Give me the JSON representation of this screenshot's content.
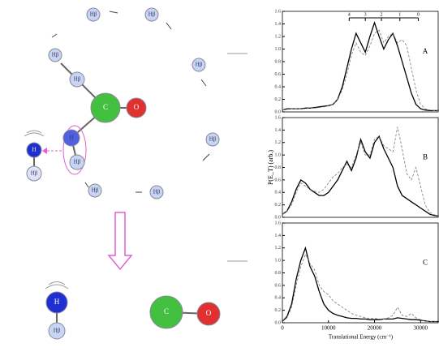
{
  "diagram": {
    "nodes": [
      {
        "label": "Hβ"
      },
      {
        "label": "Hβ"
      },
      {
        "label": "Hβ"
      },
      {
        "label": "Hβ"
      },
      {
        "label": "Hβ"
      },
      {
        "label": "Hβ"
      },
      {
        "label": "Hβ"
      },
      {
        "label": "Hβ"
      },
      {
        "label": "C"
      },
      {
        "label": "O"
      },
      {
        "label": "H"
      },
      {
        "label": "Hβ"
      },
      {
        "label": "H"
      },
      {
        "label": "Hβ"
      },
      {
        "label": "H"
      },
      {
        "label": "Hβ"
      },
      {
        "label": "C"
      },
      {
        "label": "O"
      }
    ]
  },
  "chart_data": [
    {
      "type": "line",
      "label": "A",
      "xlim": [
        0,
        34000
      ],
      "ylim": [
        0,
        1.6
      ],
      "yticks": [
        {
          "value": 0,
          "label": "0.0"
        },
        {
          "value": 0.2,
          "label": "0.2"
        },
        {
          "value": 0.4,
          "label": "0.4"
        },
        {
          "value": 0.6,
          "label": "0.6"
        },
        {
          "value": 0.8,
          "label": "0.8"
        },
        {
          "value": 1,
          "label": "1.0"
        },
        {
          "value": 1.2,
          "label": "1.2"
        },
        {
          "value": 1.4,
          "label": "1.4"
        },
        {
          "value": 1.6,
          "label": "1.6"
        }
      ],
      "comb": {
        "x": [
          14500,
          18000,
          21500,
          25500,
          29500
        ],
        "labels": [
          "4",
          "3",
          "2",
          "1",
          "0"
        ]
      },
      "x": [
        0,
        1000,
        2000,
        3000,
        4000,
        5000,
        6000,
        7000,
        8000,
        9000,
        10000,
        11000,
        12000,
        13000,
        14000,
        15000,
        16000,
        17000,
        18000,
        19000,
        20000,
        21000,
        22000,
        23000,
        24000,
        25000,
        26000,
        27000,
        28000,
        29000,
        30000,
        31000,
        32000,
        33000,
        34000
      ],
      "series": [
        {
          "color": "#000000",
          "style": "solid",
          "values": [
            0.03,
            0.05,
            0.05,
            0.05,
            0.05,
            0.06,
            0.06,
            0.07,
            0.08,
            0.09,
            0.1,
            0.12,
            0.2,
            0.4,
            0.7,
            1.0,
            1.25,
            1.1,
            0.95,
            1.2,
            1.42,
            1.2,
            1.0,
            1.15,
            1.25,
            1.05,
            0.8,
            0.55,
            0.3,
            0.12,
            0.05,
            0.03,
            0.02,
            0.02,
            0.02
          ]
        },
        {
          "color": "#777777",
          "style": "dashed",
          "values": [
            0.03,
            0.04,
            0.05,
            0.05,
            0.05,
            0.05,
            0.06,
            0.06,
            0.07,
            0.08,
            0.1,
            0.12,
            0.2,
            0.35,
            0.6,
            0.9,
            1.1,
            0.95,
            0.9,
            1.05,
            1.25,
            1.3,
            1.1,
            1.2,
            1.25,
            1.1,
            1.15,
            1.05,
            0.7,
            0.35,
            0.12,
            0.05,
            0.03,
            0.02,
            0.02
          ]
        }
      ]
    },
    {
      "type": "line",
      "label": "B",
      "ylabel": "P(E_T) (arb.)",
      "xlim": [
        0,
        34000
      ],
      "ylim": [
        0,
        1.6
      ],
      "yticks": [
        {
          "value": 0,
          "label": "0.0"
        },
        {
          "value": 0.2,
          "label": "0.2"
        },
        {
          "value": 0.4,
          "label": "0.4"
        },
        {
          "value": 0.6,
          "label": "0.6"
        },
        {
          "value": 0.8,
          "label": "0.8"
        },
        {
          "value": 1,
          "label": "1.0"
        },
        {
          "value": 1.2,
          "label": "1.2"
        },
        {
          "value": 1.4,
          "label": "1.4"
        },
        {
          "value": 1.6,
          "label": "1.6"
        }
      ],
      "x": [
        0,
        1000,
        2000,
        3000,
        4000,
        5000,
        6000,
        7000,
        8000,
        9000,
        10000,
        11000,
        12000,
        13000,
        14000,
        15000,
        16000,
        17000,
        18000,
        19000,
        20000,
        21000,
        22000,
        23000,
        24000,
        25000,
        26000,
        27000,
        28000,
        29000,
        30000,
        31000,
        32000,
        33000,
        34000
      ],
      "series": [
        {
          "color": "#000000",
          "style": "solid",
          "values": [
            0.05,
            0.1,
            0.25,
            0.45,
            0.6,
            0.55,
            0.45,
            0.4,
            0.35,
            0.35,
            0.4,
            0.5,
            0.6,
            0.75,
            0.9,
            0.75,
            0.95,
            1.25,
            1.05,
            0.95,
            1.2,
            1.3,
            1.1,
            0.95,
            0.8,
            0.5,
            0.35,
            0.3,
            0.25,
            0.2,
            0.15,
            0.1,
            0.05,
            0.03,
            0.02
          ]
        },
        {
          "color": "#777777",
          "style": "dashed",
          "values": [
            0.05,
            0.1,
            0.2,
            0.4,
            0.55,
            0.5,
            0.45,
            0.42,
            0.4,
            0.45,
            0.55,
            0.65,
            0.7,
            0.8,
            0.85,
            0.8,
            1.0,
            1.2,
            1.0,
            1.0,
            1.25,
            1.3,
            1.15,
            1.1,
            1.05,
            1.45,
            1.1,
            0.7,
            0.6,
            0.8,
            0.5,
            0.2,
            0.08,
            0.04,
            0.02
          ]
        }
      ]
    },
    {
      "type": "line",
      "label": "C",
      "xlabel": "Translational Energy (cm⁻¹)",
      "xlim": [
        0,
        34000
      ],
      "ylim": [
        0,
        1.6
      ],
      "xticks": [
        0,
        10000,
        20000,
        30000
      ],
      "yticks": [
        {
          "value": 0,
          "label": "0.0"
        },
        {
          "value": 0.2,
          "label": "0.2"
        },
        {
          "value": 0.4,
          "label": "0.4"
        },
        {
          "value": 0.6,
          "label": "0.6"
        },
        {
          "value": 0.8,
          "label": "0.8"
        },
        {
          "value": 1,
          "label": "1.0"
        },
        {
          "value": 1.2,
          "label": "1.2"
        },
        {
          "value": 1.4,
          "label": "1.4"
        },
        {
          "value": 1.6,
          "label": "1.6"
        }
      ],
      "x": [
        0,
        1000,
        2000,
        3000,
        4000,
        5000,
        6000,
        7000,
        8000,
        9000,
        10000,
        11000,
        12000,
        13000,
        14000,
        15000,
        16000,
        17000,
        18000,
        19000,
        20000,
        21000,
        22000,
        23000,
        24000,
        25000,
        26000,
        27000,
        28000,
        29000,
        30000,
        31000,
        32000,
        33000,
        34000
      ],
      "series": [
        {
          "color": "#000000",
          "style": "solid",
          "values": [
            0.02,
            0.1,
            0.3,
            0.7,
            1.0,
            1.2,
            0.9,
            0.75,
            0.5,
            0.3,
            0.2,
            0.15,
            0.12,
            0.1,
            0.08,
            0.07,
            0.07,
            0.06,
            0.06,
            0.05,
            0.05,
            0.05,
            0.06,
            0.06,
            0.06,
            0.08,
            0.07,
            0.06,
            0.05,
            0.05,
            0.04,
            0.03,
            0.02,
            0.02,
            0.02
          ]
        },
        {
          "color": "#777777",
          "style": "dashed",
          "values": [
            0.02,
            0.08,
            0.25,
            0.6,
            0.9,
            1.1,
            0.95,
            0.85,
            0.6,
            0.5,
            0.45,
            0.35,
            0.3,
            0.25,
            0.2,
            0.15,
            0.12,
            0.1,
            0.08,
            0.07,
            0.07,
            0.06,
            0.06,
            0.08,
            0.12,
            0.25,
            0.12,
            0.1,
            0.15,
            0.08,
            0.05,
            0.03,
            0.02,
            0.02,
            0.02
          ]
        }
      ]
    }
  ]
}
